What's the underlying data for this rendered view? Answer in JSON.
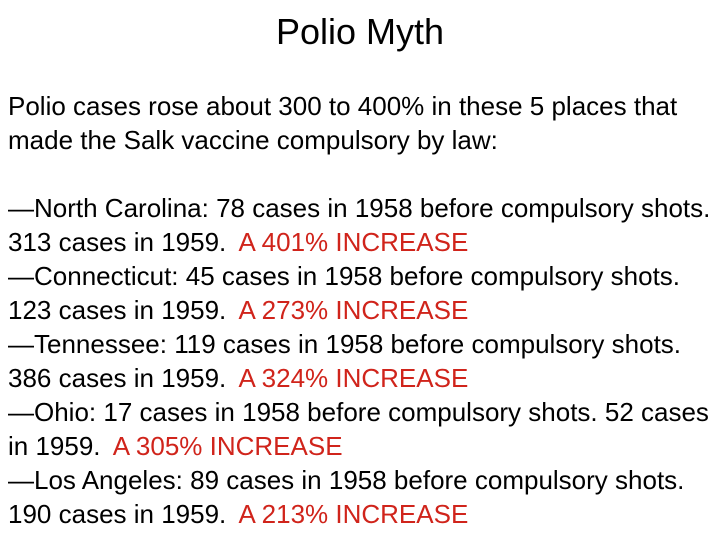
{
  "header": {
    "title": "Polio Myth"
  },
  "intro": "Polio cases rose about 300 to 400% in these 5 places that made the Salk vaccine compulsory by law:",
  "items": [
    {
      "text": "—North Carolina: 78 cases in 1958 before compulsory shots. 313 cases in 1959.",
      "highlight": "A 401% INCREASE"
    },
    {
      "text": "—Connecticut: 45 cases in 1958 before compulsory shots. 123 cases in 1959.",
      "highlight": "A 273% INCREASE"
    },
    {
      "text": "—Tennessee: 119 cases in 1958 before compulsory shots. 386 cases in 1959.",
      "highlight": "A 324% INCREASE"
    },
    {
      "text": "—Ohio: 17 cases in 1958 before compulsory shots. 52 cases in 1959.",
      "highlight": "A 305% INCREASE"
    },
    {
      "text": "—Los Angeles: 89 cases in 1958 before compulsory shots. 190 cases in 1959.",
      "highlight": "A 213% INCREASE"
    }
  ]
}
